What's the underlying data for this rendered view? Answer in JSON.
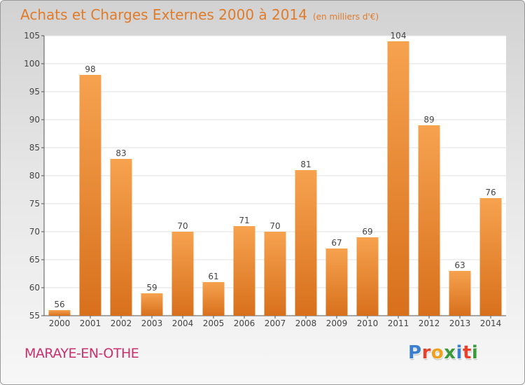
{
  "header": {
    "title": "Achats et Charges Externes 2000 à 2014",
    "unit": "(en milliers d'€)"
  },
  "footer": {
    "commune": "MARAYE-EN-OTHE",
    "logo_text": "Proxiti"
  },
  "colors": {
    "title": "#e07b2a",
    "bar_top": "#f6a24f",
    "bar_bottom": "#d8701c",
    "commune": "#c8316e",
    "logo": [
      "#3a7fd0",
      "#e8402a",
      "#f0a020",
      "#3a9a3a",
      "#3a7fd0",
      "#e8402a",
      "#3a9a3a"
    ]
  },
  "chart_data": {
    "type": "bar",
    "title": "Achats et Charges Externes 2000 à 2014",
    "subtitle": "(en milliers d'€)",
    "xlabel": "",
    "ylabel": "",
    "ylim": [
      55,
      105
    ],
    "yticks": [
      55,
      60,
      65,
      70,
      75,
      80,
      85,
      90,
      95,
      100,
      105
    ],
    "grid": true,
    "categories": [
      "2000",
      "2001",
      "2002",
      "2003",
      "2004",
      "2005",
      "2006",
      "2007",
      "2008",
      "2009",
      "2010",
      "2011",
      "2012",
      "2013",
      "2014"
    ],
    "values": [
      56,
      98,
      83,
      59,
      70,
      61,
      71,
      70,
      81,
      67,
      69,
      104,
      89,
      63,
      76
    ]
  }
}
